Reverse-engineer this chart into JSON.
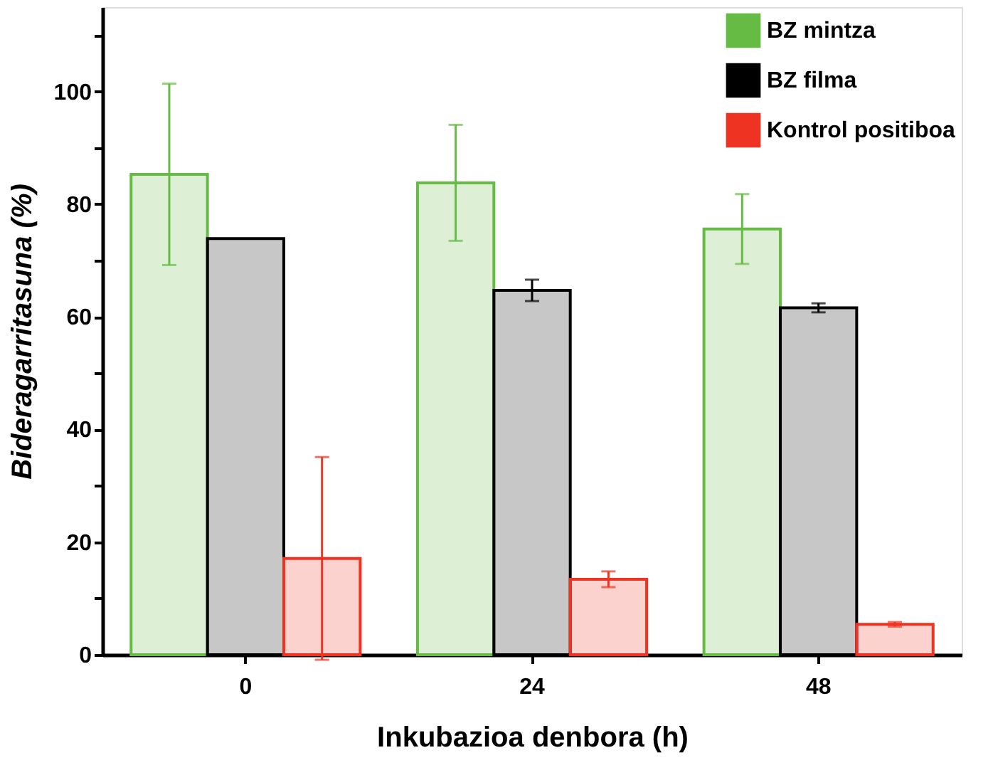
{
  "chart_data": {
    "type": "bar",
    "xlabel": "Inkubazioa denbora (h)",
    "ylabel": "Bideragarritasuna (%)",
    "categories": [
      "0",
      "24",
      "48"
    ],
    "series": [
      {
        "name": "BZ mintza",
        "color": "#66bb44",
        "values": [
          85.3,
          83.8,
          75.6
        ],
        "errors": [
          16.1,
          10.3,
          6.2
        ]
      },
      {
        "name": "BZ filma",
        "color": "#000000",
        "values": [
          73.9,
          64.7,
          61.6
        ],
        "errors": [
          null,
          1.9,
          0.8
        ]
      },
      {
        "name": "Kontrol positiboa",
        "color": "#ee3322",
        "values": [
          17.1,
          13.4,
          5.4
        ],
        "errors": [
          18,
          1.4,
          0.4
        ]
      }
    ],
    "ylim": [
      0,
      115
    ],
    "yticks": [
      0,
      {
        "value": 10,
        "label": null
      },
      20,
      {
        "value": 30,
        "label": null
      },
      40,
      {
        "value": 50,
        "label": null
      },
      60,
      {
        "value": 70,
        "label": null
      },
      80,
      {
        "value": 90,
        "label": null
      },
      100,
      {
        "value": 110,
        "label": null
      }
    ],
    "legend": "top right",
    "grid": false
  }
}
